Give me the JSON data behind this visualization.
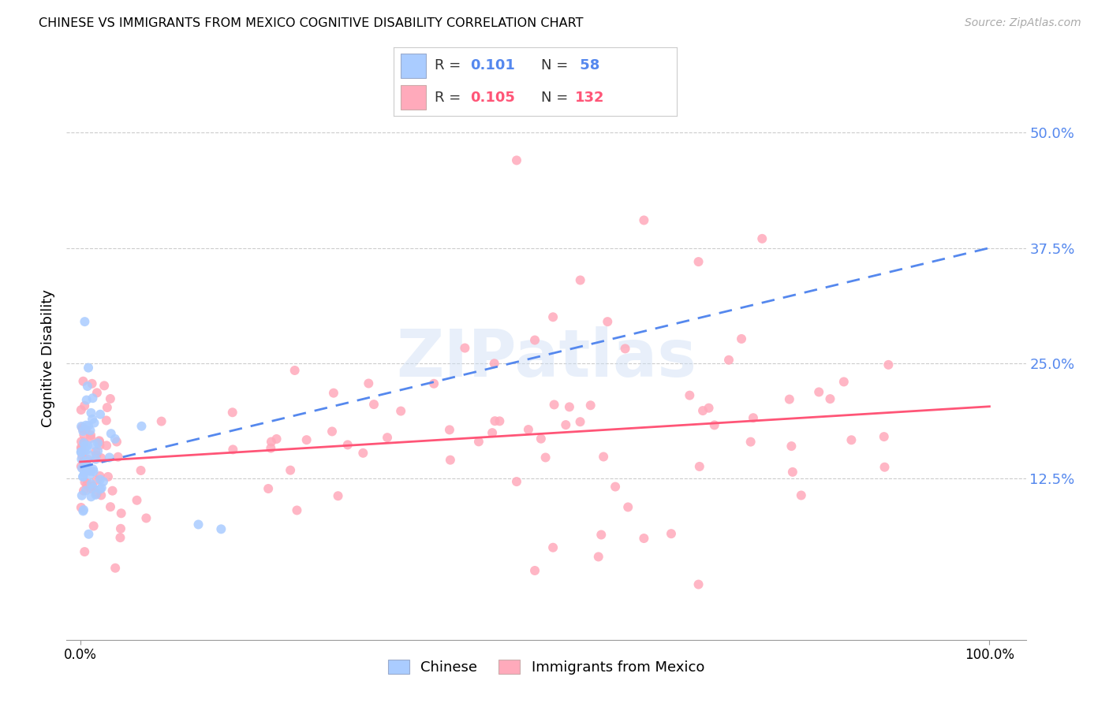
{
  "title": "CHINESE VS IMMIGRANTS FROM MEXICO COGNITIVE DISABILITY CORRELATION CHART",
  "source": "Source: ZipAtlas.com",
  "ylabel": "Cognitive Disability",
  "bg_color": "#ffffff",
  "grid_color": "#cccccc",
  "chinese_scatter_color": "#aaccff",
  "mexico_scatter_color": "#ffaabb",
  "chinese_line_color": "#5588ee",
  "mexico_line_color": "#ff5577",
  "tick_color": "#5588ee",
  "ytick_vals": [
    0.0,
    0.125,
    0.25,
    0.375,
    0.5
  ],
  "ytick_labels": [
    "",
    "12.5%",
    "25.0%",
    "37.5%",
    "50.0%"
  ],
  "xtick_left_label": "0.0%",
  "xtick_right_label": "100.0%",
  "legend1_label": "Chinese",
  "legend2_label": "Immigrants from Mexico",
  "watermark": "ZIPatlas",
  "chinese_R": "0.101",
  "chinese_N": "58",
  "mexico_R": "0.105",
  "mexico_N": "132"
}
